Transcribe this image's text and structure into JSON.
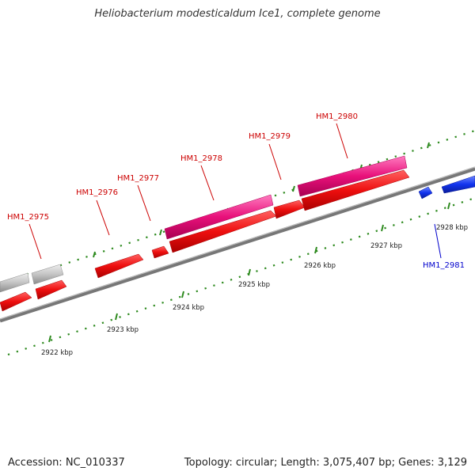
{
  "title": "Heliobacterium modesticaldum Ice1, complete genome",
  "footer": {
    "accession": "Accession: NC_010337",
    "summary": "Topology: circular; Length: 3,075,407 bp; Genes: 3,129"
  },
  "colors": {
    "forward_gene": "#e8107a",
    "cds": "#ee1111",
    "pseudo": "#bbbbbb",
    "reverse_gene": "#1133ee",
    "tick": "#2d8a1e",
    "backbone": "#808080",
    "label_forward": "#cc0000",
    "label_reverse": "#0000cc"
  },
  "gene_labels": [
    {
      "text": "HM1_2975",
      "strand": "forward"
    },
    {
      "text": "HM1_2976",
      "strand": "forward"
    },
    {
      "text": "HM1_2977",
      "strand": "forward"
    },
    {
      "text": "HM1_2978",
      "strand": "forward"
    },
    {
      "text": "HM1_2979",
      "strand": "forward"
    },
    {
      "text": "HM1_2980",
      "strand": "forward"
    },
    {
      "text": "HM1_2981",
      "strand": "reverse"
    }
  ],
  "kbp_labels": [
    "2922 kbp",
    "2923 kbp",
    "2924 kbp",
    "2925 kbp",
    "2926 kbp",
    "2927 kbp",
    "2928 kbp"
  ]
}
